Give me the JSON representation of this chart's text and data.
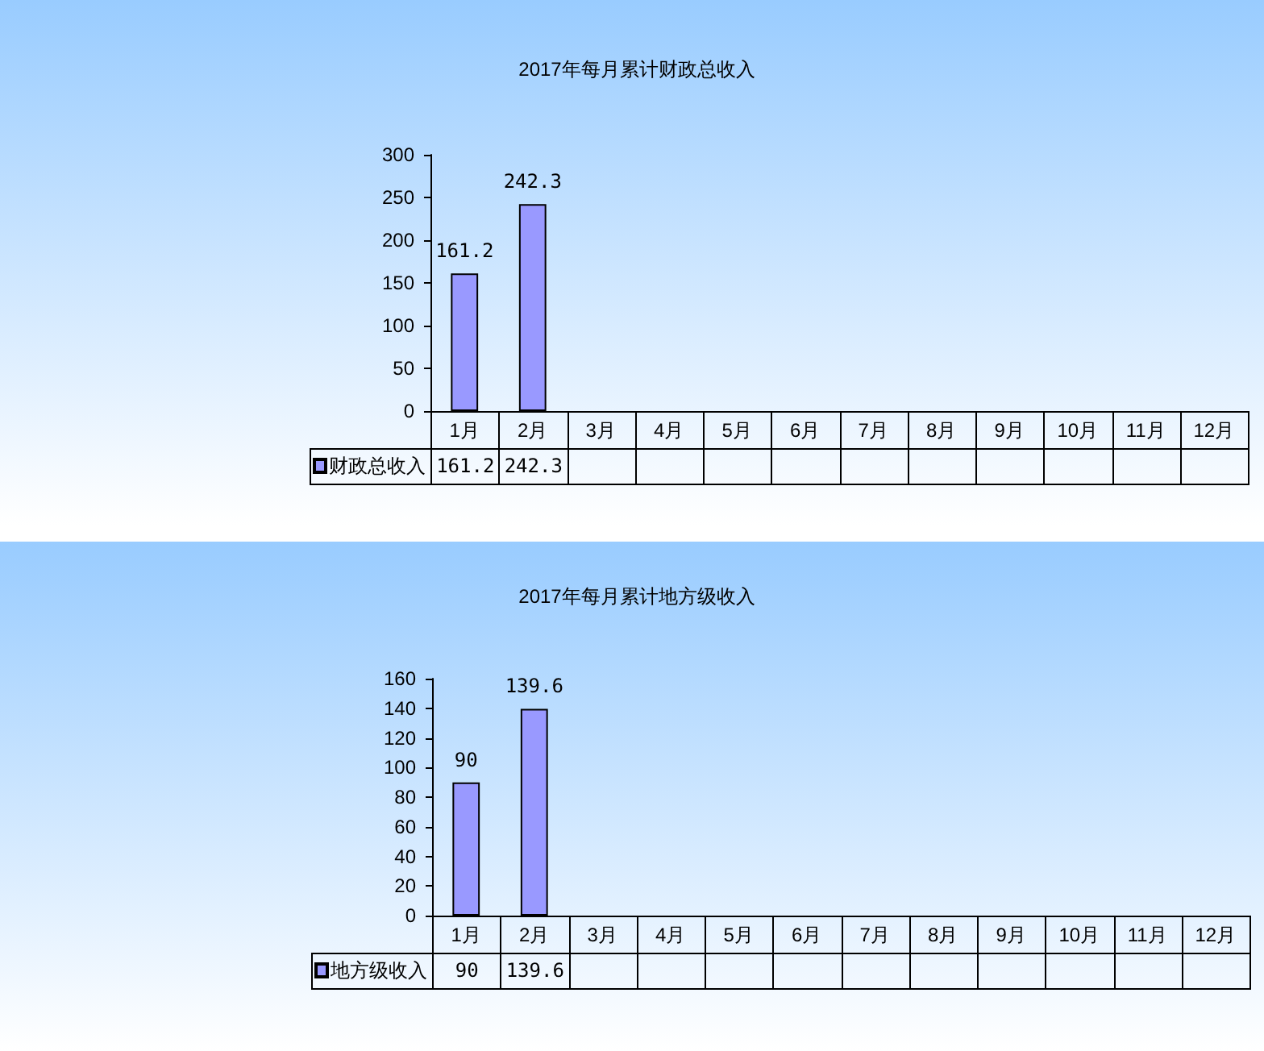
{
  "chart_data": [
    {
      "type": "bar",
      "title": "2017年每月累计财政总收入",
      "categories": [
        "1月",
        "2月",
        "3月",
        "4月",
        "5月",
        "6月",
        "7月",
        "8月",
        "9月",
        "10月",
        "11月",
        "12月"
      ],
      "series": [
        {
          "name": "财政总收入",
          "color": "#9999ff",
          "values": [
            161.2,
            242.3,
            null,
            null,
            null,
            null,
            null,
            null,
            null,
            null,
            null,
            null
          ],
          "value_labels": [
            "161.2",
            "242.3",
            null,
            null,
            null,
            null,
            null,
            null,
            null,
            null,
            null,
            null
          ]
        }
      ],
      "ylim": [
        0,
        300
      ],
      "yticks": [
        0,
        50,
        100,
        150,
        200,
        250,
        300
      ],
      "annotations": [
        "161.2",
        "242.3"
      ],
      "legend": "bottom left"
    },
    {
      "type": "bar",
      "title": "2017年每月累计地方级收入",
      "categories": [
        "1月",
        "2月",
        "3月",
        "4月",
        "5月",
        "6月",
        "7月",
        "8月",
        "9月",
        "10月",
        "11月",
        "12月"
      ],
      "series": [
        {
          "name": "地方级收入",
          "color": "#9999ff",
          "values": [
            90,
            139.6,
            null,
            null,
            null,
            null,
            null,
            null,
            null,
            null,
            null,
            null
          ],
          "value_labels": [
            "90",
            "139.6",
            null,
            null,
            null,
            null,
            null,
            null,
            null,
            null,
            null,
            null
          ]
        }
      ],
      "ylim": [
        0,
        160
      ],
      "yticks": [
        0,
        20,
        40,
        60,
        80,
        100,
        120,
        140,
        160
      ],
      "annotations": [
        "90",
        "139.6"
      ],
      "legend": "bottom left"
    }
  ]
}
